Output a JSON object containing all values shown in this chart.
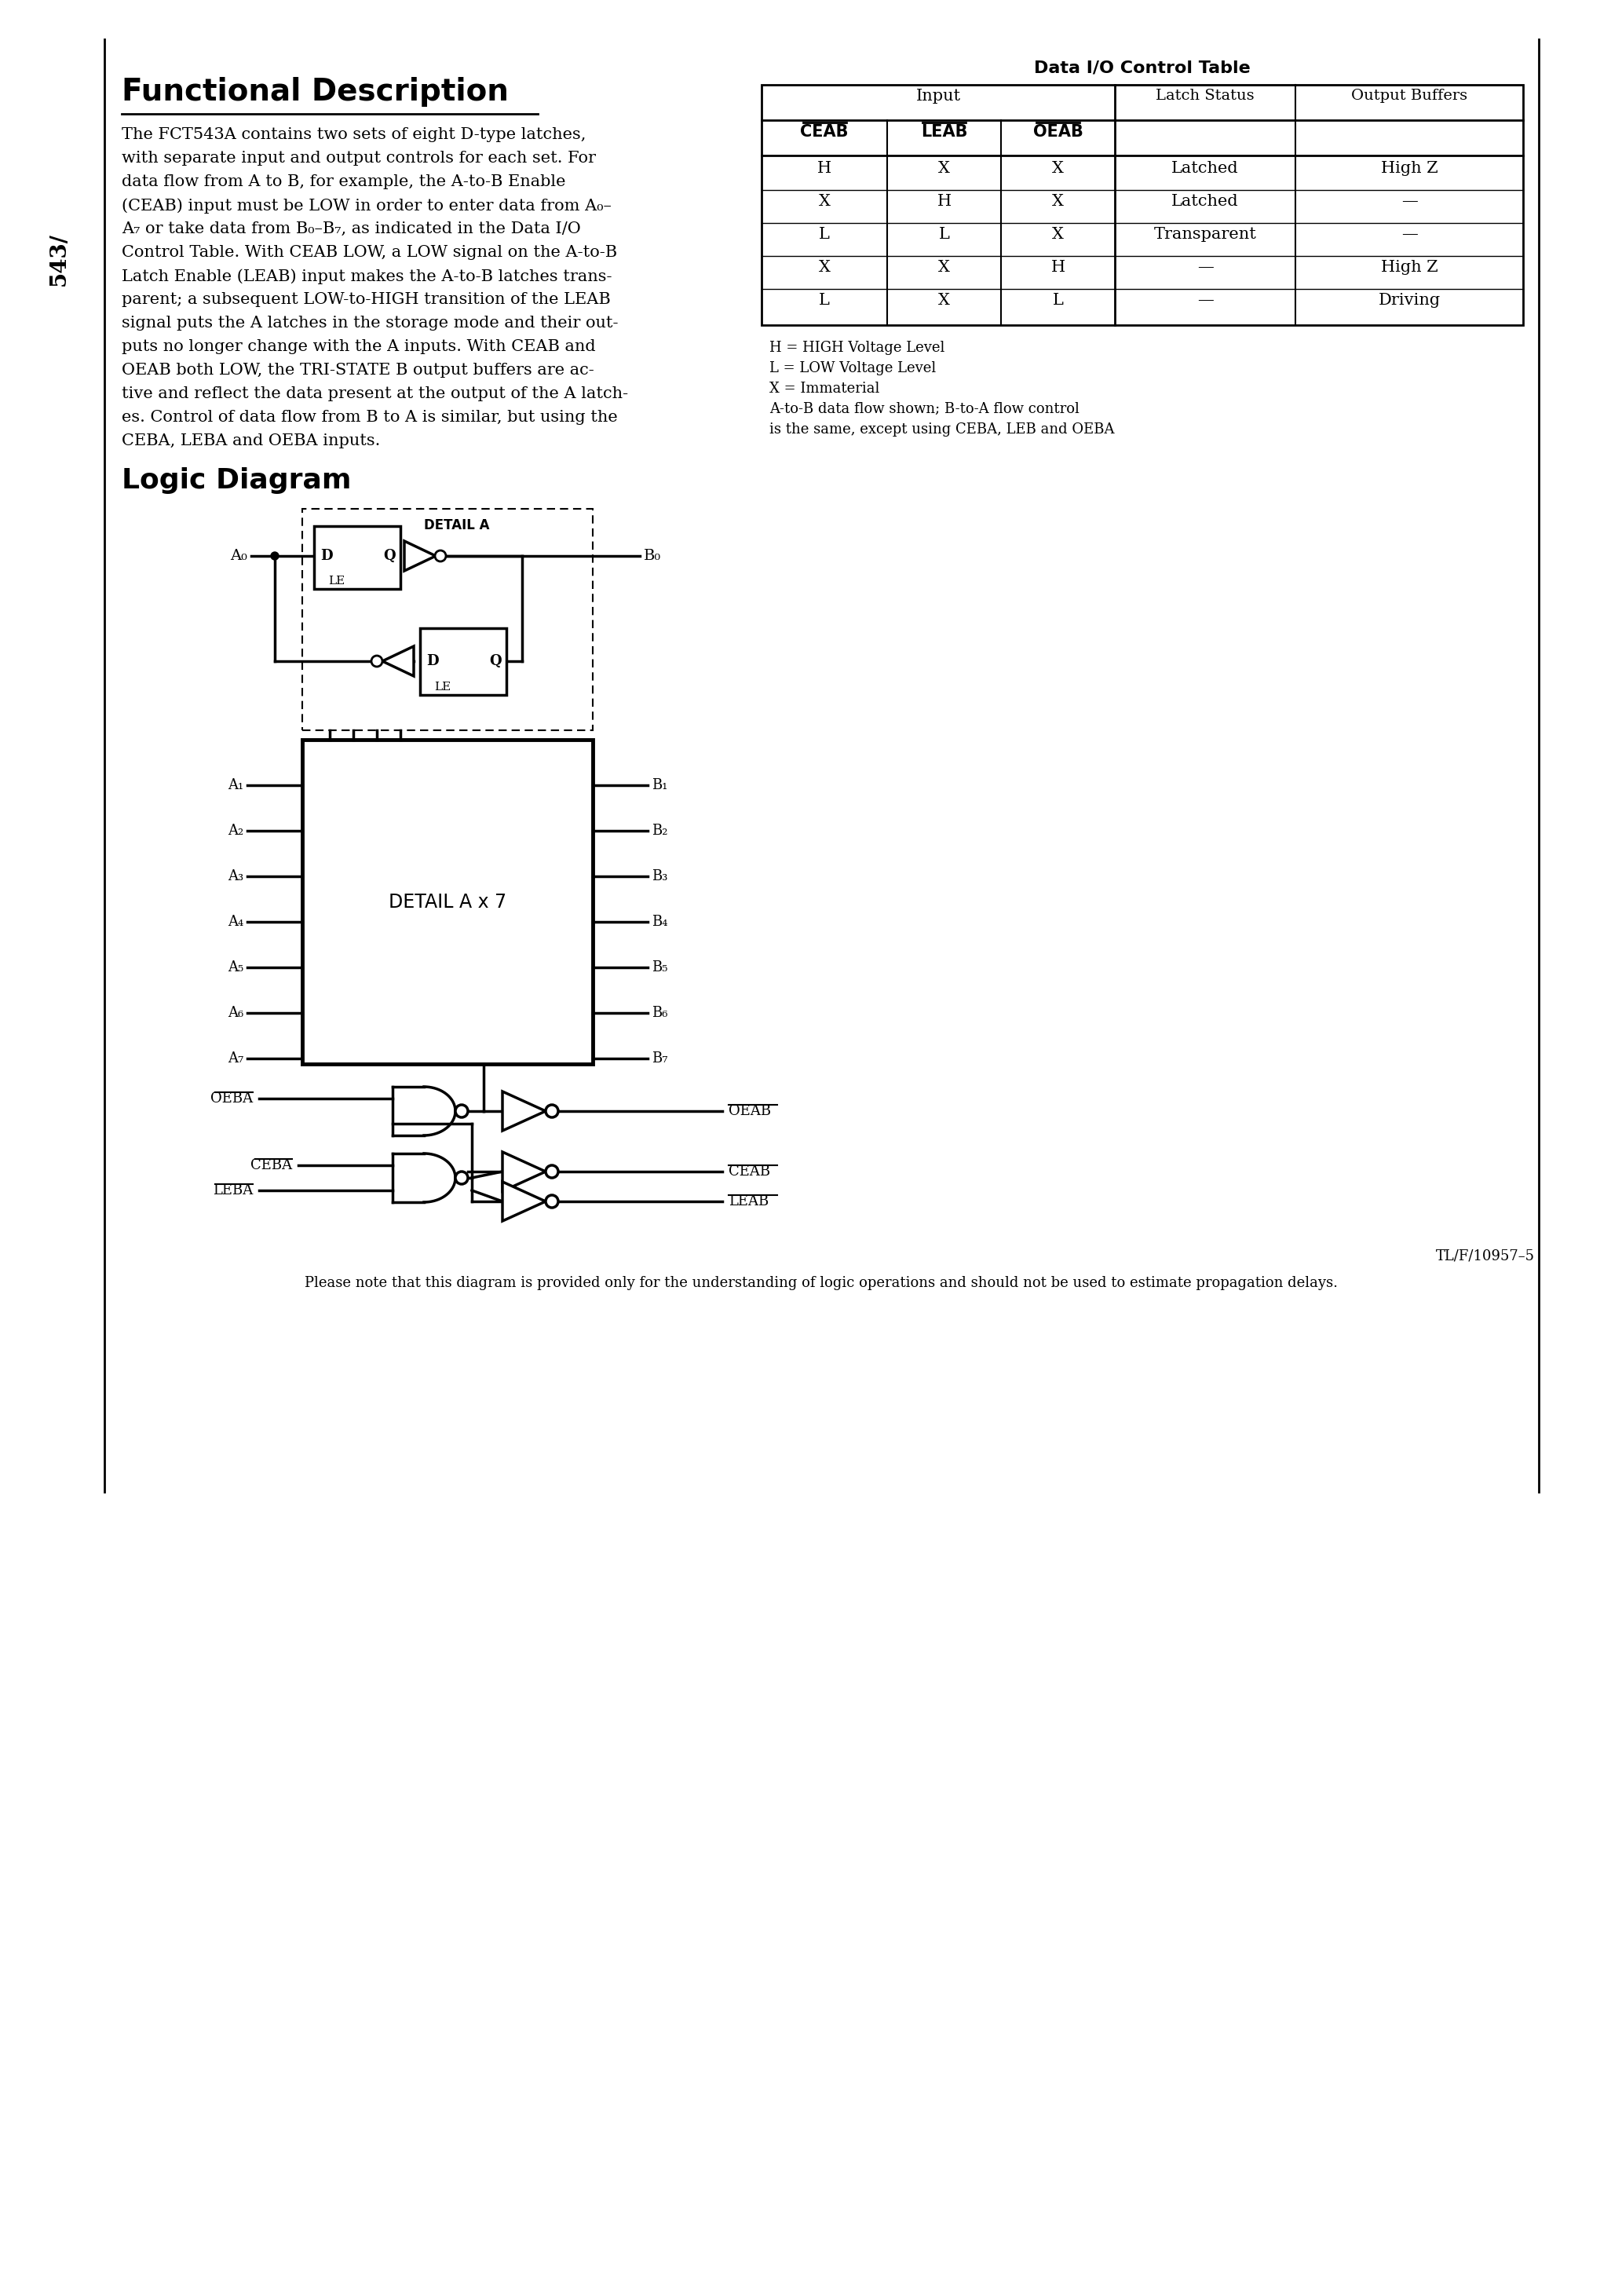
{
  "page_bg": "#ffffff",
  "page_number": "543/",
  "title_functional": "Functional Description",
  "body_text_col1": [
    "The FCT543A contains two sets of eight D-type latches,",
    "with separate input and output controls for each set. For",
    "data flow from A to B, for example, the A-to-B Enable",
    "(CEAB) input must be LOW in order to enter data from A₀–",
    "A₇ or take data from B₀–B₇, as indicated in the Data I/O",
    "Control Table. With CEAB LOW, a LOW signal on the A-to-B",
    "Latch Enable (LEAB) input makes the A-to-B latches trans-",
    "parent; a subsequent LOW-to-HIGH transition of the LEAB",
    "signal puts the A latches in the storage mode and their out-",
    "puts no longer change with the A inputs. With CEAB and",
    "OEAB both LOW, the TRI-STATE B output buffers are ac-",
    "tive and reflect the data present at the output of the A latch-",
    "es. Control of data flow from B to A is similar, but using the",
    "CEBA, LEBA and OEBA inputs."
  ],
  "table_title": "Data I/O Control Table",
  "table_col_headers": [
    "CEAB",
    "LEAB",
    "OEAB",
    "Latch Status",
    "Output Buffers"
  ],
  "table_rows": [
    [
      "H",
      "X",
      "X",
      "Latched",
      "High Z"
    ],
    [
      "X",
      "H",
      "X",
      "Latched",
      "—"
    ],
    [
      "L",
      "L",
      "X",
      "Transparent",
      "—"
    ],
    [
      "X",
      "X",
      "H",
      "—",
      "High Z"
    ],
    [
      "L",
      "X",
      "L",
      "—",
      "Driving"
    ]
  ],
  "legend_lines": [
    "H = HIGH Voltage Level",
    "L = LOW Voltage Level",
    "X = Immaterial",
    "A-to-B data flow shown; B-to-A flow control",
    "is the same, except using CEBA, LEB and OEBA"
  ],
  "title_logic": "Logic Diagram",
  "diagram_note": "Please note that this diagram is provided only for the understanding of logic operations and should not be used to estimate propagation delays.",
  "fig_label": "TL/F/10957–5"
}
